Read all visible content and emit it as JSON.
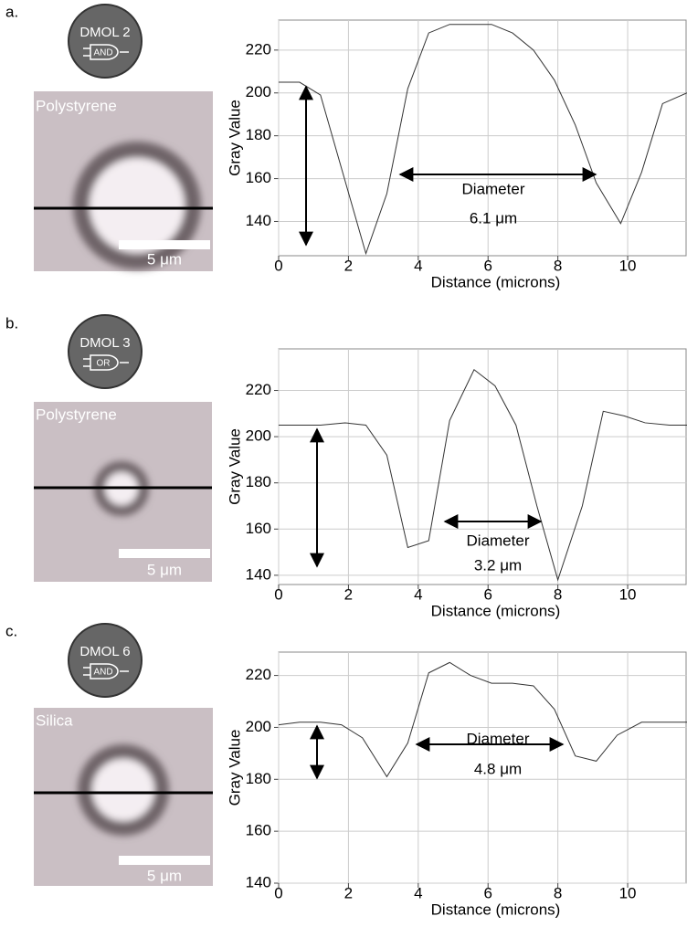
{
  "chart_data": [
    {
      "type": "line",
      "panel_label": "a.",
      "badge": "DMOL 2",
      "gate": "AND",
      "material": "Polystyrene",
      "scale_bar_label": "5 μm",
      "xlabel": "Distance (microns)",
      "ylabel": "Gray Value",
      "annotation": [
        "Diameter",
        "6.1 μm"
      ],
      "x": [
        0,
        0.6,
        1.2,
        2.5,
        3.1,
        3.7,
        4.3,
        4.9,
        5.5,
        6.1,
        6.7,
        7.3,
        7.9,
        8.5,
        9.1,
        9.8,
        10.4,
        11,
        11.7
      ],
      "values": [
        205,
        205,
        199,
        125,
        153,
        202,
        228,
        232,
        232,
        232,
        228,
        220,
        206,
        185,
        158,
        139,
        163,
        195,
        200
      ],
      "xlim": [
        0,
        11.7
      ],
      "ylim": [
        124,
        234
      ],
      "xticks": [
        0,
        2,
        4,
        6,
        8,
        10
      ],
      "yticks": [
        140,
        160,
        180,
        200,
        220
      ],
      "grid": true,
      "color": "#333333"
    },
    {
      "type": "line",
      "panel_label": "b.",
      "badge": "DMOL 3",
      "gate": "OR",
      "material": "Polystyrene",
      "scale_bar_label": "5 μm",
      "xlabel": "Distance (microns)",
      "ylabel": "Gray Value",
      "annotation": [
        "Diameter",
        "3.2 μm"
      ],
      "x": [
        0,
        0.6,
        1.2,
        1.9,
        2.5,
        3.1,
        3.7,
        4.3,
        4.9,
        5.6,
        6.2,
        6.8,
        7.4,
        8.0,
        8.7,
        9.3,
        9.9,
        10.5,
        11.2,
        11.7
      ],
      "values": [
        205,
        205,
        205,
        206,
        205,
        192,
        152,
        155,
        207,
        229,
        222,
        205,
        170,
        138,
        170,
        211,
        209,
        206,
        205,
        205
      ],
      "xlim": [
        0,
        11.7
      ],
      "ylim": [
        136,
        238
      ],
      "xticks": [
        0,
        2,
        4,
        6,
        8,
        10
      ],
      "yticks": [
        140,
        160,
        180,
        200,
        220
      ],
      "grid": true,
      "color": "#333333"
    },
    {
      "type": "line",
      "panel_label": "c.",
      "badge": "DMOL 6",
      "gate": "AND",
      "material": "Silica",
      "scale_bar_label": "5 μm",
      "xlabel": "Distance (microns)",
      "ylabel": "Gray Value",
      "annotation": [
        "Diameter",
        "4.8 μm"
      ],
      "x": [
        0,
        0.6,
        1.2,
        1.8,
        2.4,
        3.1,
        3.7,
        4.3,
        4.9,
        5.5,
        6.1,
        6.7,
        7.3,
        7.9,
        8.5,
        9.1,
        9.7,
        10.4,
        11.7
      ],
      "values": [
        201,
        202,
        202,
        201,
        196,
        181,
        194,
        221,
        225,
        220,
        217,
        217,
        216,
        207,
        189,
        187,
        197,
        202,
        202
      ],
      "xlim": [
        0,
        11.7
      ],
      "ylim": [
        140,
        229
      ],
      "xticks": [
        0,
        2,
        4,
        6,
        8,
        10
      ],
      "yticks": [
        140,
        160,
        180,
        200,
        220
      ],
      "grid": true,
      "color": "#333333"
    }
  ]
}
